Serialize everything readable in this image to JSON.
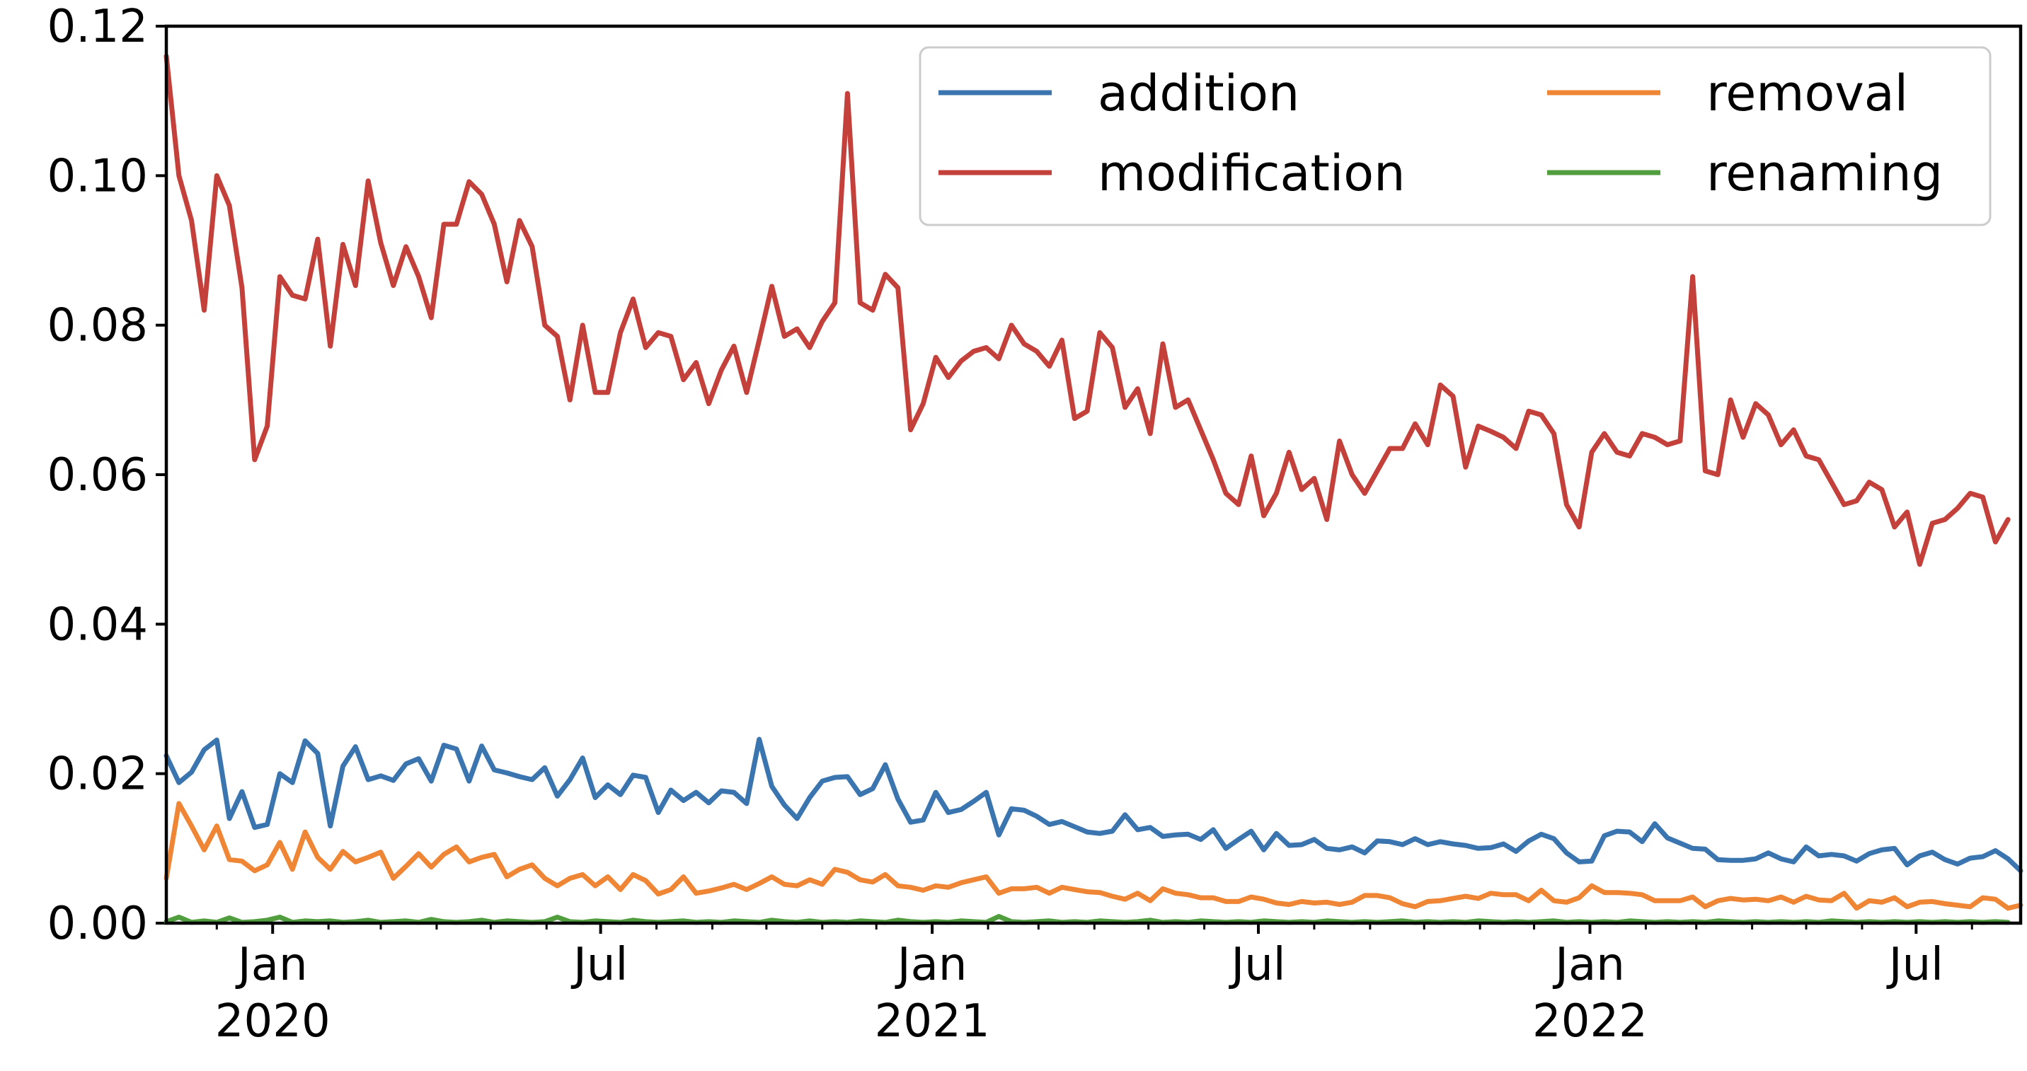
{
  "chart_data": {
    "type": "line",
    "title": "",
    "xlabel": "",
    "ylabel": "",
    "x_start": "2019-11-03",
    "x_step_days": 7,
    "ylim": [
      0,
      0.12
    ],
    "yticks": [
      "0.00",
      "0.02",
      "0.04",
      "0.06",
      "0.08",
      "0.10",
      "0.12"
    ],
    "xticks": [
      {
        "date": "2020-01-01",
        "line1": "Jan",
        "line2": "2020"
      },
      {
        "date": "2020-07-01",
        "line1": "Jul",
        "line2": ""
      },
      {
        "date": "2021-01-01",
        "line1": "Jan",
        "line2": "2021"
      },
      {
        "date": "2021-07-01",
        "line1": "Jul",
        "line2": ""
      },
      {
        "date": "2022-01-01",
        "line1": "Jan",
        "line2": "2022"
      },
      {
        "date": "2022-07-01",
        "line1": "Jul",
        "line2": ""
      }
    ],
    "grid": false,
    "legend_position": "top-right",
    "series": [
      {
        "name": "addition",
        "color": "#3b75af",
        "values": [
          0.0224,
          0.0188,
          0.0202,
          0.0232,
          0.0245,
          0.014,
          0.0176,
          0.0128,
          0.0132,
          0.02,
          0.0188,
          0.0244,
          0.0227,
          0.013,
          0.021,
          0.0236,
          0.0192,
          0.0197,
          0.0191,
          0.0213,
          0.022,
          0.019,
          0.0238,
          0.0233,
          0.019,
          0.0237,
          0.0205,
          0.0201,
          0.0196,
          0.0192,
          0.0208,
          0.017,
          0.0192,
          0.0221,
          0.0168,
          0.0185,
          0.0172,
          0.0198,
          0.0195,
          0.0148,
          0.0178,
          0.0164,
          0.0175,
          0.0161,
          0.0177,
          0.0175,
          0.016,
          0.0246,
          0.0183,
          0.0158,
          0.014,
          0.0168,
          0.019,
          0.0195,
          0.0196,
          0.0172,
          0.018,
          0.0212,
          0.0166,
          0.0135,
          0.0138,
          0.0175,
          0.0148,
          0.0152,
          0.0163,
          0.0175,
          0.0118,
          0.0153,
          0.0151,
          0.0143,
          0.0132,
          0.0136,
          0.0129,
          0.0122,
          0.012,
          0.0123,
          0.0145,
          0.0125,
          0.0128,
          0.0116,
          0.0118,
          0.0119,
          0.0112,
          0.0125,
          0.01,
          0.0112,
          0.0123,
          0.0098,
          0.012,
          0.0104,
          0.0105,
          0.0112,
          0.01,
          0.0098,
          0.0102,
          0.0094,
          0.011,
          0.0109,
          0.0105,
          0.0113,
          0.0105,
          0.0109,
          0.0106,
          0.0104,
          0.01,
          0.0101,
          0.0106,
          0.0096,
          0.011,
          0.0119,
          0.0113,
          0.0094,
          0.0082,
          0.0083,
          0.0117,
          0.0123,
          0.0122,
          0.0109,
          0.0133,
          0.0114,
          0.0107,
          0.01,
          0.0099,
          0.0085,
          0.0084,
          0.0084,
          0.0086,
          0.0094,
          0.0086,
          0.0082,
          0.0102,
          0.009,
          0.0092,
          0.009,
          0.0083,
          0.0093,
          0.0098,
          0.01,
          0.0078,
          0.009,
          0.0095,
          0.0085,
          0.0079,
          0.0087,
          0.0089,
          0.0097,
          0.0086,
          0.007
        ]
      },
      {
        "name": "removal",
        "color": "#ef8636",
        "values": [
          0.006,
          0.016,
          0.013,
          0.0098,
          0.013,
          0.0085,
          0.0083,
          0.007,
          0.0078,
          0.0108,
          0.0072,
          0.0122,
          0.0088,
          0.0072,
          0.0096,
          0.0082,
          0.0088,
          0.0095,
          0.006,
          0.0076,
          0.0093,
          0.0075,
          0.0092,
          0.0102,
          0.0082,
          0.0088,
          0.0092,
          0.0062,
          0.0072,
          0.0078,
          0.006,
          0.005,
          0.006,
          0.0065,
          0.005,
          0.0062,
          0.0045,
          0.0065,
          0.0057,
          0.0039,
          0.0045,
          0.0062,
          0.004,
          0.0043,
          0.0047,
          0.0052,
          0.0045,
          0.0053,
          0.0062,
          0.0052,
          0.005,
          0.0058,
          0.0052,
          0.0072,
          0.0068,
          0.0058,
          0.0055,
          0.0065,
          0.005,
          0.0048,
          0.0044,
          0.005,
          0.0048,
          0.0054,
          0.0058,
          0.0062,
          0.004,
          0.0046,
          0.0046,
          0.0048,
          0.004,
          0.0048,
          0.0045,
          0.0042,
          0.0041,
          0.0036,
          0.0032,
          0.004,
          0.003,
          0.0046,
          0.004,
          0.0038,
          0.0034,
          0.0034,
          0.0029,
          0.0029,
          0.0035,
          0.0032,
          0.0027,
          0.0025,
          0.0029,
          0.0027,
          0.0028,
          0.0025,
          0.0028,
          0.0037,
          0.0037,
          0.0034,
          0.0026,
          0.0022,
          0.0029,
          0.003,
          0.0033,
          0.0036,
          0.0033,
          0.004,
          0.0038,
          0.0038,
          0.003,
          0.0044,
          0.003,
          0.0028,
          0.0034,
          0.005,
          0.0041,
          0.0041,
          0.004,
          0.0038,
          0.003,
          0.003,
          0.003,
          0.0035,
          0.0022,
          0.003,
          0.0033,
          0.0031,
          0.0032,
          0.003,
          0.0035,
          0.0028,
          0.0036,
          0.0031,
          0.003,
          0.004,
          0.002,
          0.003,
          0.0028,
          0.0034,
          0.0022,
          0.0028,
          0.0029,
          0.0026,
          0.0024,
          0.0022,
          0.0034,
          0.0032,
          0.002,
          0.0024
        ]
      },
      {
        "name": "modification",
        "color": "#c4403a",
        "values": [
          0.116,
          0.1,
          0.094,
          0.082,
          0.1,
          0.096,
          0.085,
          0.062,
          0.0665,
          0.0865,
          0.084,
          0.0835,
          0.0915,
          0.0772,
          0.0908,
          0.0853,
          0.0993,
          0.091,
          0.0853,
          0.0905,
          0.0865,
          0.081,
          0.0935,
          0.0935,
          0.0992,
          0.0975,
          0.0935,
          0.0858,
          0.094,
          0.0905,
          0.08,
          0.0785,
          0.07,
          0.08,
          0.071,
          0.071,
          0.079,
          0.0835,
          0.077,
          0.079,
          0.0785,
          0.0727,
          0.075,
          0.0695,
          0.074,
          0.0772,
          0.071,
          0.078,
          0.0852,
          0.0785,
          0.0795,
          0.077,
          0.0805,
          0.083,
          0.111,
          0.083,
          0.082,
          0.0868,
          0.085,
          0.066,
          0.0695,
          0.0757,
          0.073,
          0.0752,
          0.0765,
          0.077,
          0.0755,
          0.08,
          0.0775,
          0.0765,
          0.0745,
          0.078,
          0.0675,
          0.0685,
          0.079,
          0.077,
          0.069,
          0.0715,
          0.0655,
          0.0775,
          0.069,
          0.07,
          0.066,
          0.062,
          0.0575,
          0.056,
          0.0625,
          0.0545,
          0.0575,
          0.063,
          0.058,
          0.0595,
          0.054,
          0.0645,
          0.06,
          0.0575,
          0.0605,
          0.0635,
          0.0635,
          0.0668,
          0.064,
          0.072,
          0.0705,
          0.061,
          0.0665,
          0.0658,
          0.065,
          0.0635,
          0.0685,
          0.068,
          0.0655,
          0.056,
          0.053,
          0.063,
          0.0655,
          0.063,
          0.0625,
          0.0655,
          0.065,
          0.064,
          0.0645,
          0.0865,
          0.0605,
          0.06,
          0.07,
          0.065,
          0.0695,
          0.068,
          0.064,
          0.066,
          0.0625,
          0.062,
          0.059,
          0.056,
          0.0565,
          0.059,
          0.058,
          0.053,
          0.055,
          0.048,
          0.0535,
          0.054,
          0.0555,
          0.0575,
          0.057,
          0.051,
          0.054
        ]
      },
      {
        "name": "renaming",
        "color": "#519e3e",
        "values": [
          0.0002,
          0.0008,
          0.0001,
          0.0003,
          0.0001,
          0.0007,
          0.0001,
          0.0002,
          0.0004,
          0.0008,
          0.0001,
          0.0003,
          0.0002,
          0.0003,
          0.0001,
          0.0002,
          0.0004,
          0.0001,
          0.0002,
          0.0003,
          0.0001,
          0.0005,
          0.0002,
          0.0001,
          0.0002,
          0.0004,
          0.0001,
          0.0003,
          0.0002,
          0.0001,
          0.0002,
          0.0008,
          0.0002,
          0.0001,
          0.0003,
          0.0002,
          0.0001,
          0.0004,
          0.0002,
          0.0001,
          0.0002,
          0.0003,
          0.0001,
          0.0002,
          0.0001,
          0.0003,
          0.0002,
          0.0001,
          0.0004,
          0.0002,
          0.0001,
          0.0003,
          0.0001,
          0.0002,
          0.0001,
          0.0003,
          0.0002,
          0.0001,
          0.0004,
          0.0002,
          0.0001,
          0.0002,
          0.0001,
          0.0003,
          0.0002,
          0.0001,
          0.0009,
          0.0002,
          0.0001,
          0.0002,
          0.0003,
          0.0001,
          0.0002,
          0.0001,
          0.0003,
          0.0002,
          0.0001,
          0.0002,
          0.0004,
          0.0001,
          0.0002,
          0.0001,
          0.0003,
          0.0002,
          0.0001,
          0.0002,
          0.0001,
          0.0003,
          0.0002,
          0.0001,
          0.0002,
          0.0001,
          0.0003,
          0.0002,
          0.0001,
          0.0002,
          0.0001,
          0.0002,
          0.0003,
          0.0001,
          0.0002,
          0.0001,
          0.0002,
          0.0001,
          0.0003,
          0.0002,
          0.0001,
          0.0002,
          0.0001,
          0.0002,
          0.0003,
          0.0001,
          0.0002,
          0.0001,
          0.0002,
          0.0001,
          0.0003,
          0.0002,
          0.0001,
          0.0002,
          0.0001,
          0.0002,
          0.0001,
          0.0003,
          0.0002,
          0.0001,
          0.0002,
          0.0001,
          0.0002,
          0.0001,
          0.0002,
          0.0001,
          0.0003,
          0.0002,
          0.0001,
          0.0002,
          0.0001,
          0.0002,
          0.0001,
          0.0002,
          0.0001,
          0.0002,
          0.0001,
          0.0002,
          0.0001,
          0.0002,
          0.0001
        ]
      }
    ]
  }
}
